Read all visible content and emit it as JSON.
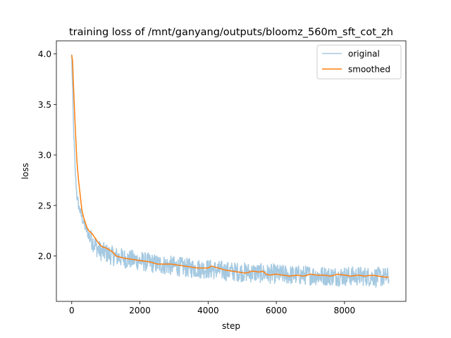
{
  "chart_data": {
    "type": "line",
    "title": "training loss of /mnt/ganyang/outputs/bloomz_560m_sft_cot_zh",
    "xlabel": "step",
    "ylabel": "loss",
    "xlim": [
      -450,
      9800
    ],
    "ylim": [
      1.55,
      4.13
    ],
    "xticks": [
      0,
      2000,
      4000,
      6000,
      8000
    ],
    "xtick_labels": [
      "0",
      "2000",
      "4000",
      "6000",
      "8000"
    ],
    "yticks": [
      2.0,
      2.5,
      3.0,
      3.5,
      4.0
    ],
    "ytick_labels": [
      "2.0",
      "2.5",
      "3.0",
      "3.5",
      "4.0"
    ],
    "legend_position": "top-right",
    "grid": false,
    "series": [
      {
        "name": "original",
        "color": "#1f77b4",
        "alpha": 0.4,
        "noise_amplitude": 0.1,
        "points": [
          [
            0,
            3.98
          ],
          [
            50,
            3.3
          ],
          [
            100,
            2.85
          ],
          [
            150,
            2.6
          ],
          [
            200,
            2.5
          ],
          [
            300,
            2.38
          ],
          [
            400,
            2.28
          ],
          [
            500,
            2.2
          ],
          [
            600,
            2.15
          ],
          [
            700,
            2.1
          ],
          [
            800,
            2.06
          ],
          [
            900,
            2.04
          ],
          [
            1000,
            2.03
          ],
          [
            1200,
            2.0
          ],
          [
            1500,
            1.98
          ],
          [
            2000,
            1.95
          ],
          [
            2500,
            1.92
          ],
          [
            3000,
            1.9
          ],
          [
            3500,
            1.88
          ],
          [
            4000,
            1.87
          ],
          [
            4500,
            1.85
          ],
          [
            5000,
            1.84
          ],
          [
            5500,
            1.83
          ],
          [
            6000,
            1.82
          ],
          [
            6500,
            1.81
          ],
          [
            7000,
            1.81
          ],
          [
            7500,
            1.8
          ],
          [
            8000,
            1.8
          ],
          [
            8500,
            1.8
          ],
          [
            9000,
            1.79
          ],
          [
            9300,
            1.79
          ]
        ]
      },
      {
        "name": "smoothed",
        "color": "#ff7f0e",
        "points": [
          [
            0,
            3.99
          ],
          [
            25,
            3.93
          ],
          [
            50,
            3.7
          ],
          [
            100,
            3.3
          ],
          [
            150,
            2.95
          ],
          [
            200,
            2.75
          ],
          [
            250,
            2.6
          ],
          [
            300,
            2.45
          ],
          [
            350,
            2.38
          ],
          [
            400,
            2.33
          ],
          [
            450,
            2.28
          ],
          [
            500,
            2.25
          ],
          [
            600,
            2.22
          ],
          [
            700,
            2.17
          ],
          [
            800,
            2.12
          ],
          [
            900,
            2.09
          ],
          [
            1000,
            2.08
          ],
          [
            1100,
            2.06
          ],
          [
            1200,
            2.04
          ],
          [
            1300,
            2.0
          ],
          [
            1400,
            1.99
          ],
          [
            1500,
            1.98
          ],
          [
            1700,
            1.97
          ],
          [
            1900,
            1.96
          ],
          [
            2100,
            1.95
          ],
          [
            2300,
            1.94
          ],
          [
            2500,
            1.92
          ],
          [
            2700,
            1.92
          ],
          [
            2900,
            1.92
          ],
          [
            3100,
            1.91
          ],
          [
            3300,
            1.9
          ],
          [
            3500,
            1.89
          ],
          [
            3700,
            1.88
          ],
          [
            3900,
            1.88
          ],
          [
            4000,
            1.88
          ],
          [
            4100,
            1.9
          ],
          [
            4300,
            1.88
          ],
          [
            4500,
            1.86
          ],
          [
            4700,
            1.85
          ],
          [
            4900,
            1.84
          ],
          [
            5100,
            1.83
          ],
          [
            5300,
            1.85
          ],
          [
            5500,
            1.84
          ],
          [
            5600,
            1.85
          ],
          [
            5700,
            1.82
          ],
          [
            5800,
            1.81
          ],
          [
            6000,
            1.82
          ],
          [
            6200,
            1.81
          ],
          [
            6400,
            1.8
          ],
          [
            6600,
            1.81
          ],
          [
            6800,
            1.8
          ],
          [
            7000,
            1.82
          ],
          [
            7200,
            1.81
          ],
          [
            7400,
            1.81
          ],
          [
            7600,
            1.8
          ],
          [
            7800,
            1.82
          ],
          [
            8000,
            1.81
          ],
          [
            8200,
            1.8
          ],
          [
            8400,
            1.81
          ],
          [
            8600,
            1.8
          ],
          [
            8800,
            1.81
          ],
          [
            9000,
            1.8
          ],
          [
            9200,
            1.79
          ],
          [
            9300,
            1.79
          ]
        ]
      }
    ]
  }
}
